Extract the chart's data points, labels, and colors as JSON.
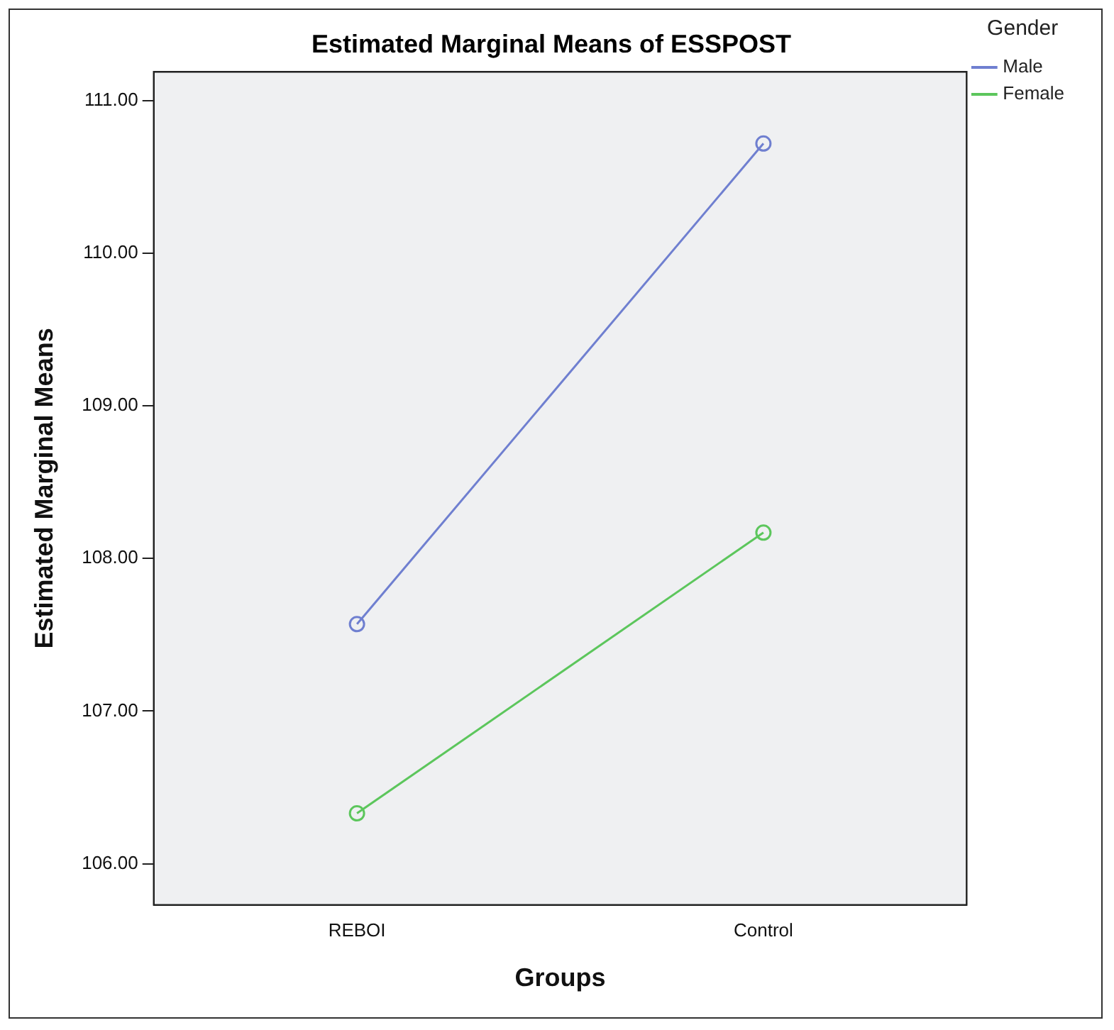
{
  "chart_data": {
    "type": "line",
    "title": "Estimated Marginal Means of ESSPOST",
    "xlabel": "Groups",
    "ylabel": "Estimated Marginal Means",
    "legend_title": "Gender",
    "categories": [
      "REBOI",
      "Control"
    ],
    "series": [
      {
        "name": "Male",
        "color": "#6f7fd0",
        "values": [
          107.57,
          110.72
        ]
      },
      {
        "name": "Female",
        "color": "#5cc65c",
        "values": [
          106.33,
          108.17
        ]
      }
    ],
    "ylim": [
      105.73,
      111.19
    ],
    "yticks": [
      {
        "value": 106,
        "label": "106.00"
      },
      {
        "value": 107,
        "label": "107.00"
      },
      {
        "value": 108,
        "label": "108.00"
      },
      {
        "value": 109,
        "label": "109.00"
      },
      {
        "value": 110,
        "label": "110.00"
      },
      {
        "value": 111,
        "label": "111.00"
      }
    ],
    "grid": false,
    "legend": "top right",
    "marker": "circle",
    "line_style": "solid"
  }
}
